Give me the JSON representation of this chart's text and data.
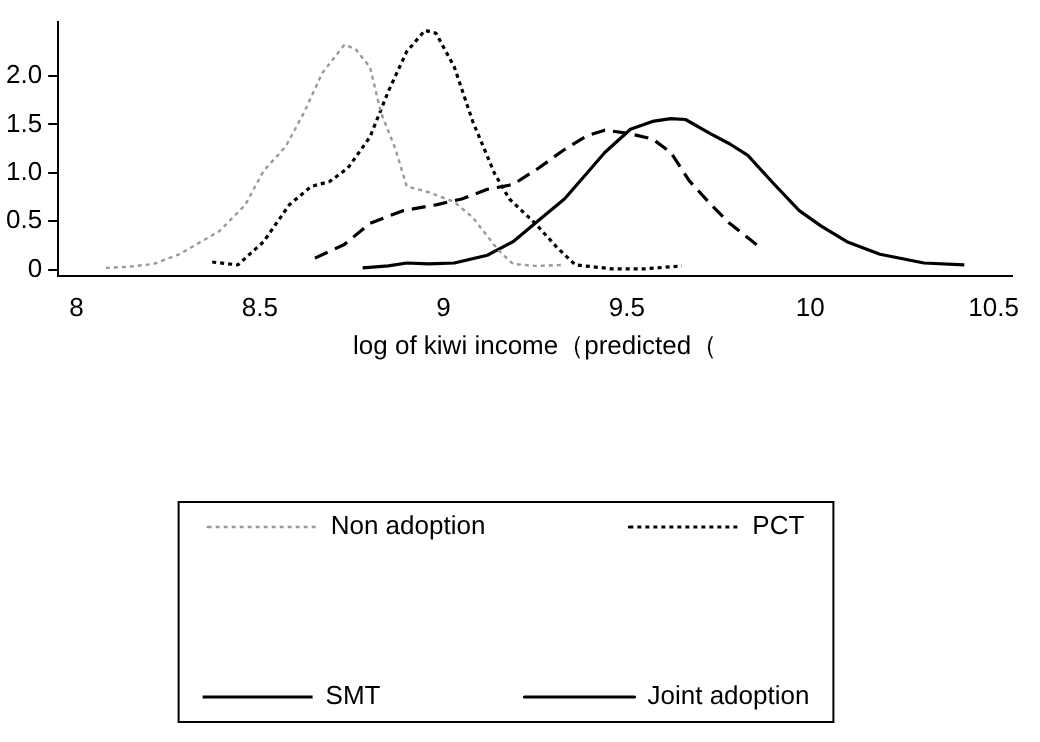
{
  "chart_data": {
    "type": "line",
    "xlabel": "log of kiwi income（predicted（",
    "xlim": [
      7.95,
      10.55
    ],
    "xticks": [
      8,
      8.5,
      9,
      9.5,
      10,
      10.5
    ],
    "ylim": [
      -0.06,
      2.56
    ],
    "yticks": [
      0,
      {
        "value": 0.5,
        "label": "0.5"
      },
      {
        "value": 1,
        "label": "1.0"
      },
      {
        "value": 1.5,
        "label": "1.5"
      },
      {
        "value": 2,
        "label": "2.0"
      }
    ],
    "grid": false,
    "legend": "bottom",
    "marker": "none",
    "series": [
      {
        "name": "Non adoption",
        "color": "#999999",
        "line_style": "dotted",
        "x": [
          8.08,
          8.14,
          8.21,
          8.28,
          8.39,
          8.46,
          8.51,
          8.57,
          8.62,
          8.67,
          8.73,
          8.76,
          8.8,
          8.83,
          8.87,
          8.9,
          8.96,
          9.03,
          9.08,
          9.15,
          9.19,
          9.25,
          9.33
        ],
        "values": [
          0.02,
          0.03,
          0.06,
          0.16,
          0.4,
          0.67,
          1.02,
          1.27,
          1.62,
          2.03,
          2.32,
          2.28,
          2.09,
          1.62,
          1.24,
          0.86,
          0.8,
          0.7,
          0.54,
          0.2,
          0.06,
          0.04,
          0.05
        ]
      },
      {
        "name": "PCT",
        "color": "#000000",
        "line_style": "dotted",
        "x": [
          8.37,
          8.44,
          8.51,
          8.58,
          8.64,
          8.69,
          8.74,
          8.8,
          8.85,
          8.9,
          8.95,
          8.98,
          9.03,
          9.08,
          9.14,
          9.18,
          9.25,
          9.31,
          9.36,
          9.46,
          9.55,
          9.65
        ],
        "values": [
          0.08,
          0.05,
          0.29,
          0.67,
          0.86,
          0.91,
          1.05,
          1.37,
          1.84,
          2.25,
          2.47,
          2.44,
          2.09,
          1.53,
          0.99,
          0.73,
          0.48,
          0.23,
          0.05,
          0.01,
          0.01,
          0.04
        ]
      },
      {
        "name": "SMT",
        "color": "#000000",
        "line_style": "dashed",
        "x": [
          8.65,
          8.73,
          8.8,
          8.89,
          8.98,
          9.05,
          9.12,
          9.19,
          9.26,
          9.33,
          9.39,
          9.44,
          9.5,
          9.57,
          9.62,
          9.67,
          9.73,
          9.78,
          9.87
        ],
        "values": [
          0.12,
          0.26,
          0.48,
          0.61,
          0.67,
          0.73,
          0.83,
          0.88,
          1.05,
          1.24,
          1.38,
          1.44,
          1.41,
          1.35,
          1.21,
          0.92,
          0.67,
          0.48,
          0.21
        ]
      },
      {
        "name": "Joint adoption",
        "color": "#000000",
        "line_style": "solid",
        "x": [
          8.78,
          8.85,
          8.9,
          8.96,
          9.03,
          9.12,
          9.19,
          9.26,
          9.33,
          9.39,
          9.44,
          9.51,
          9.57,
          9.62,
          9.66,
          9.73,
          9.78,
          9.83,
          9.9,
          9.97,
          10.03,
          10.1,
          10.19,
          10.31,
          10.42
        ],
        "values": [
          0.02,
          0.04,
          0.07,
          0.06,
          0.07,
          0.15,
          0.29,
          0.51,
          0.73,
          0.99,
          1.21,
          1.45,
          1.53,
          1.56,
          1.55,
          1.4,
          1.3,
          1.18,
          0.89,
          0.61,
          0.45,
          0.29,
          0.16,
          0.07,
          0.05
        ]
      }
    ]
  }
}
